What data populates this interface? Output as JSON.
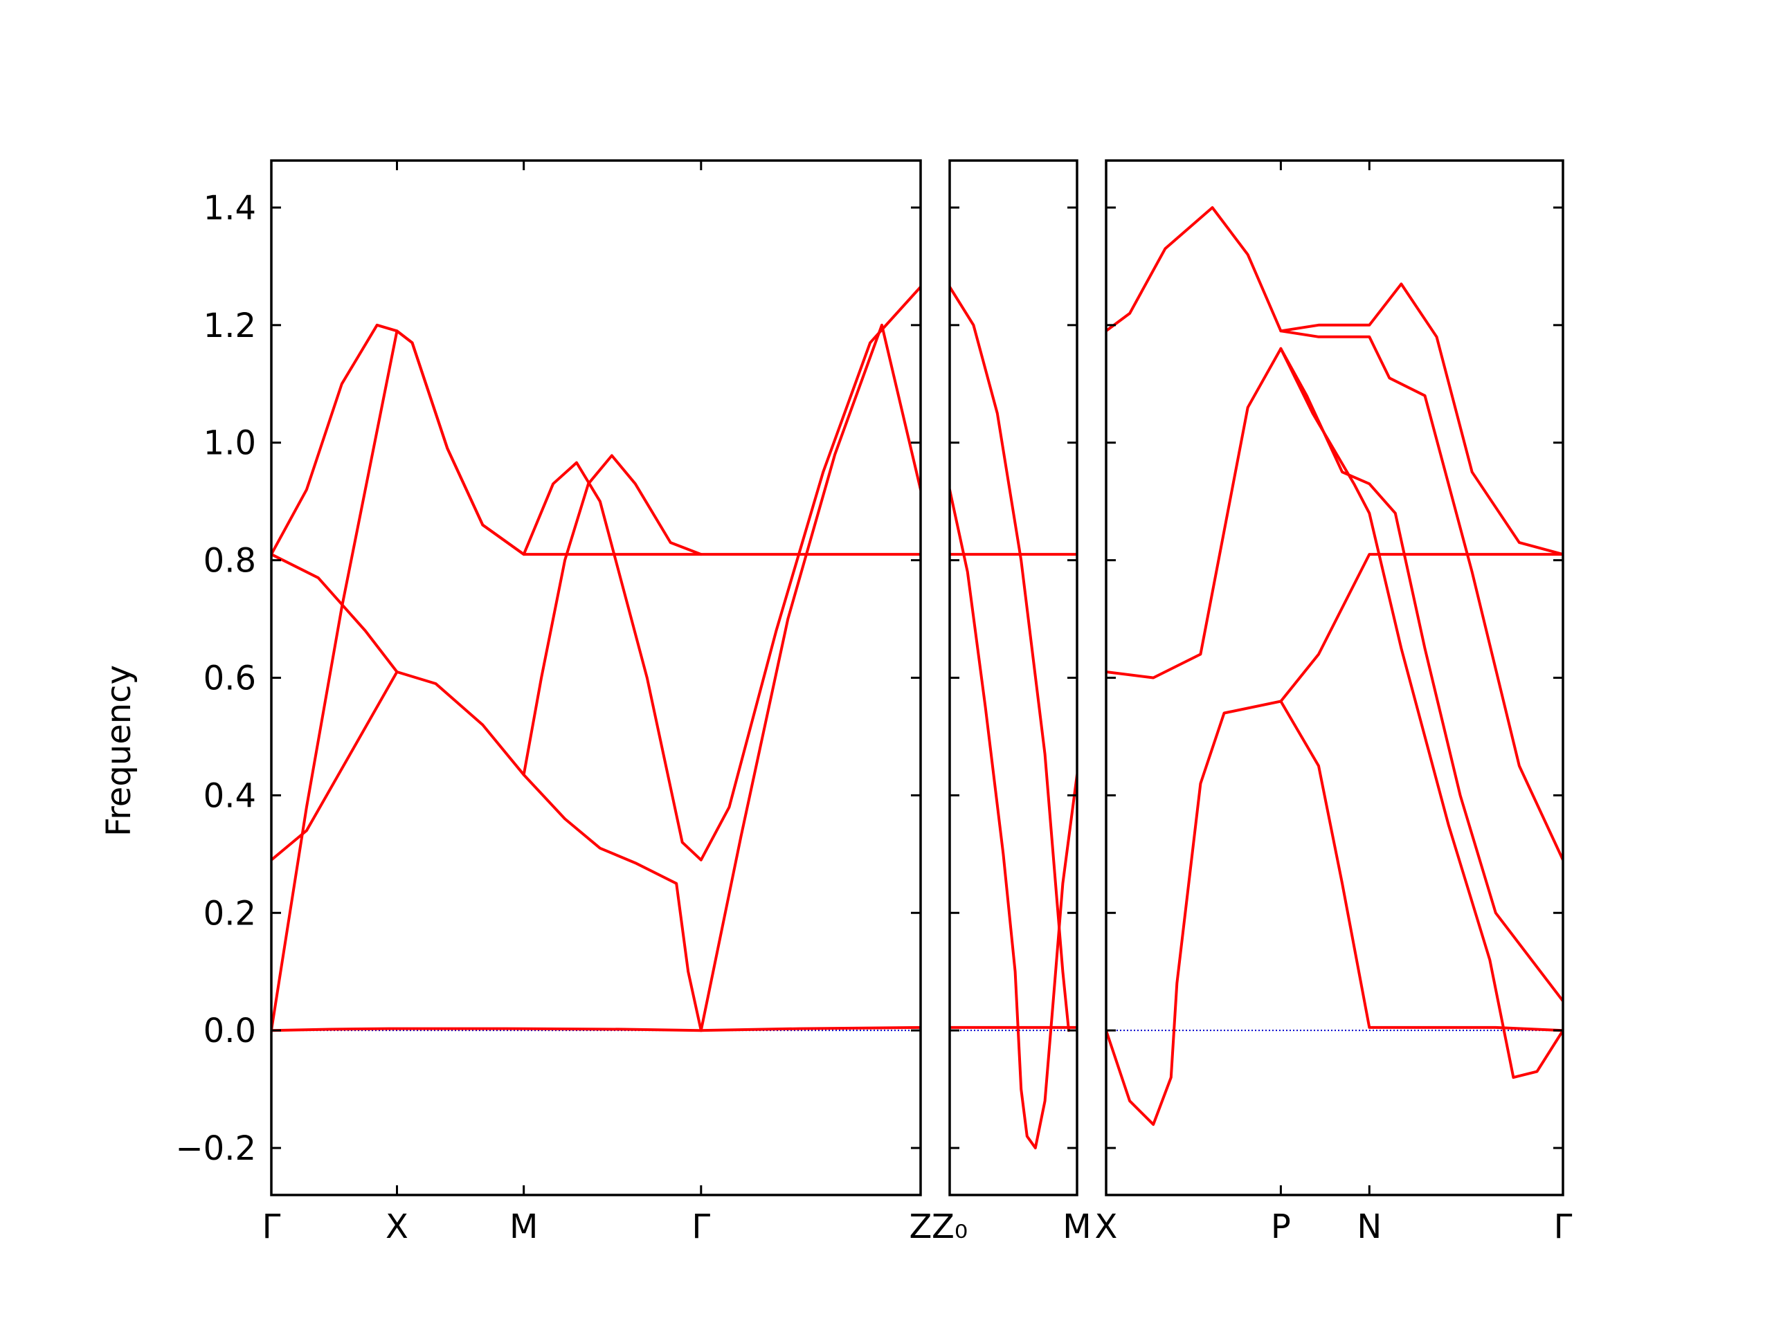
{
  "chart_data": {
    "type": "line",
    "ylabel": "Frequency",
    "ylim": [
      -0.28,
      1.48
    ],
    "yticks": [
      -0.2,
      0.0,
      0.2,
      0.4,
      0.6,
      0.8,
      1.0,
      1.2,
      1.4
    ],
    "ytick_labels": [
      "−0.2",
      "0.0",
      "0.2",
      "0.4",
      "0.6",
      "0.8",
      "1.0",
      "1.2",
      "1.4"
    ],
    "line_color": "#ff0000",
    "zero_line_color": "#0000cc",
    "panels": [
      {
        "xlim": [
          0,
          5.53
        ],
        "ticks": [
          {
            "x": 0.0,
            "label": "Γ"
          },
          {
            "x": 1.07,
            "label": "X"
          },
          {
            "x": 2.15,
            "label": "M"
          },
          {
            "x": 3.66,
            "label": "Γ"
          },
          {
            "x": 5.53,
            "label": "Z"
          }
        ],
        "bands": [
          {
            "name": "",
            "points": [
              [
                0,
                0.0
              ],
              [
                0.5,
                0.002
              ],
              [
                1.0,
                0.003
              ],
              [
                2.0,
                0.003
              ],
              [
                3.0,
                0.002
              ],
              [
                3.66,
                0.0
              ],
              [
                4.5,
                0.003
              ],
              [
                5.53,
                0.005
              ]
            ]
          },
          {
            "name": "",
            "points": [
              [
                0,
                0.0
              ],
              [
                0.3,
                0.38
              ],
              [
                0.6,
                0.72
              ],
              [
                0.9,
                1.02
              ],
              [
                1.07,
                1.19
              ],
              [
                1.2,
                1.17
              ],
              [
                1.5,
                0.99
              ],
              [
                1.8,
                0.86
              ],
              [
                2.15,
                0.81
              ],
              [
                2.4,
                0.93
              ],
              [
                2.6,
                0.966
              ],
              [
                2.8,
                0.9
              ],
              [
                3.2,
                0.6
              ],
              [
                3.5,
                0.32
              ],
              [
                3.66,
                0.29
              ],
              [
                3.9,
                0.38
              ],
              [
                4.3,
                0.68
              ],
              [
                4.7,
                0.95
              ],
              [
                5.1,
                1.17
              ],
              [
                5.53,
                1.265
              ]
            ]
          },
          {
            "name": "",
            "points": [
              [
                0,
                0.81
              ],
              [
                0.3,
                0.92
              ],
              [
                0.6,
                1.1
              ],
              [
                0.9,
                1.2
              ],
              [
                1.07,
                1.19
              ],
              [
                1.2,
                1.17
              ],
              [
                1.5,
                0.99
              ],
              [
                1.8,
                0.86
              ],
              [
                2.15,
                0.81
              ],
              [
                3.66,
                0.81
              ],
              [
                5.53,
                0.81
              ]
            ]
          },
          {
            "name": "",
            "points": [
              [
                0,
                0.81
              ],
              [
                0.4,
                0.77
              ],
              [
                0.8,
                0.68
              ],
              [
                1.07,
                0.61
              ],
              [
                1.4,
                0.59
              ],
              [
                1.8,
                0.52
              ],
              [
                2.15,
                0.435
              ],
              [
                2.5,
                0.36
              ],
              [
                2.8,
                0.31
              ],
              [
                3.1,
                0.285
              ],
              [
                3.45,
                0.25
              ],
              [
                3.55,
                0.1
              ],
              [
                3.66,
                0.0
              ]
            ]
          },
          {
            "name": "",
            "points": [
              [
                0,
                0.29
              ],
              [
                0.3,
                0.34
              ],
              [
                0.7,
                0.48
              ],
              [
                1.07,
                0.61
              ]
            ]
          },
          {
            "name": "",
            "points": [
              [
                2.15,
                0.435
              ],
              [
                2.3,
                0.6
              ],
              [
                2.5,
                0.8
              ],
              [
                2.7,
                0.93
              ],
              [
                2.9,
                0.978
              ],
              [
                3.1,
                0.93
              ],
              [
                3.4,
                0.83
              ],
              [
                3.66,
                0.81
              ]
            ]
          },
          {
            "name": "",
            "points": [
              [
                3.66,
                0.0
              ],
              [
                4.0,
                0.33
              ],
              [
                4.4,
                0.7
              ],
              [
                4.8,
                0.98
              ],
              [
                5.2,
                1.2
              ],
              [
                5.53,
                0.92
              ]
            ]
          }
        ]
      },
      {
        "xlim": [
          0,
          1.07
        ],
        "ticks": [
          {
            "x": 0.0,
            "label": "Z₀"
          },
          {
            "x": 1.07,
            "label": "M"
          }
        ],
        "bands": [
          {
            "name": "",
            "points": [
              [
                0,
                0.005
              ],
              [
                1.07,
                0.005
              ]
            ]
          },
          {
            "name": "",
            "points": [
              [
                0,
                0.81
              ],
              [
                1.07,
                0.81
              ]
            ]
          },
          {
            "name": "",
            "points": [
              [
                0,
                1.265
              ],
              [
                0.2,
                1.2
              ],
              [
                0.4,
                1.05
              ],
              [
                0.6,
                0.8
              ],
              [
                0.8,
                0.47
              ],
              [
                0.95,
                0.1
              ],
              [
                1.0,
                0.0
              ]
            ]
          },
          {
            "name": "",
            "points": [
              [
                0,
                0.92
              ],
              [
                0.15,
                0.78
              ],
              [
                0.3,
                0.55
              ],
              [
                0.45,
                0.3
              ],
              [
                0.55,
                0.1
              ],
              [
                0.6,
                -0.1
              ],
              [
                0.65,
                -0.18
              ],
              [
                0.72,
                -0.2
              ],
              [
                0.8,
                -0.12
              ],
              [
                0.87,
                0.05
              ],
              [
                0.95,
                0.25
              ],
              [
                1.07,
                0.435
              ]
            ]
          }
        ]
      },
      {
        "xlim": [
          0,
          3.87
        ],
        "ticks": [
          {
            "x": 0.0,
            "label": "X"
          },
          {
            "x": 1.48,
            "label": "P"
          },
          {
            "x": 2.23,
            "label": "N"
          },
          {
            "x": 3.87,
            "label": "Γ"
          }
        ],
        "bands": [
          {
            "name": "",
            "points": [
              [
                0,
                1.19
              ],
              [
                0.2,
                1.22
              ],
              [
                0.5,
                1.33
              ],
              [
                0.9,
                1.4
              ],
              [
                1.2,
                1.32
              ],
              [
                1.48,
                1.19
              ],
              [
                1.8,
                1.2
              ],
              [
                2.23,
                1.2
              ],
              [
                2.5,
                1.27
              ],
              [
                2.8,
                1.18
              ],
              [
                3.1,
                0.95
              ],
              [
                3.5,
                0.83
              ],
              [
                3.87,
                0.81
              ]
            ]
          },
          {
            "name": "",
            "points": [
              [
                1.48,
                1.19
              ],
              [
                1.8,
                1.18
              ],
              [
                2.23,
                1.18
              ],
              [
                2.4,
                1.11
              ],
              [
                2.7,
                1.08
              ],
              [
                3.1,
                0.78
              ],
              [
                3.5,
                0.45
              ],
              [
                3.87,
                0.29
              ]
            ]
          },
          {
            "name": "",
            "points": [
              [
                1.48,
                1.16
              ],
              [
                1.7,
                1.08
              ],
              [
                2.0,
                0.95
              ],
              [
                2.23,
                0.93
              ],
              [
                2.45,
                0.88
              ],
              [
                2.7,
                0.65
              ],
              [
                3.0,
                0.4
              ],
              [
                3.3,
                0.2
              ],
              [
                3.87,
                0.05
              ]
            ]
          },
          {
            "name": "",
            "points": [
              [
                1.48,
                1.16
              ],
              [
                1.75,
                1.05
              ],
              [
                2.1,
                0.93
              ],
              [
                2.23,
                0.88
              ],
              [
                2.5,
                0.65
              ],
              [
                2.9,
                0.35
              ],
              [
                3.25,
                0.12
              ],
              [
                3.45,
                -0.08
              ],
              [
                3.65,
                -0.07
              ],
              [
                3.87,
                0.0
              ]
            ]
          },
          {
            "name": "",
            "points": [
              [
                0,
                0.61
              ],
              [
                0.4,
                0.6
              ],
              [
                0.8,
                0.64
              ],
              [
                1.2,
                1.06
              ],
              [
                1.48,
                1.16
              ]
            ]
          },
          {
            "name": "",
            "points": [
              [
                0,
                0.0
              ],
              [
                0.2,
                -0.12
              ],
              [
                0.4,
                -0.16
              ],
              [
                0.55,
                -0.08
              ],
              [
                0.6,
                0.08
              ],
              [
                0.8,
                0.42
              ],
              [
                1.0,
                0.54
              ],
              [
                1.48,
                0.56
              ],
              [
                1.8,
                0.64
              ],
              [
                2.23,
                0.81
              ],
              [
                3.87,
                0.81
              ]
            ]
          },
          {
            "name": "",
            "points": [
              [
                1.48,
                0.56
              ],
              [
                1.8,
                0.45
              ],
              [
                2.0,
                0.25
              ],
              [
                2.23,
                0.005
              ],
              [
                3.3,
                0.005
              ],
              [
                3.87,
                0.0
              ]
            ]
          }
        ]
      }
    ]
  }
}
